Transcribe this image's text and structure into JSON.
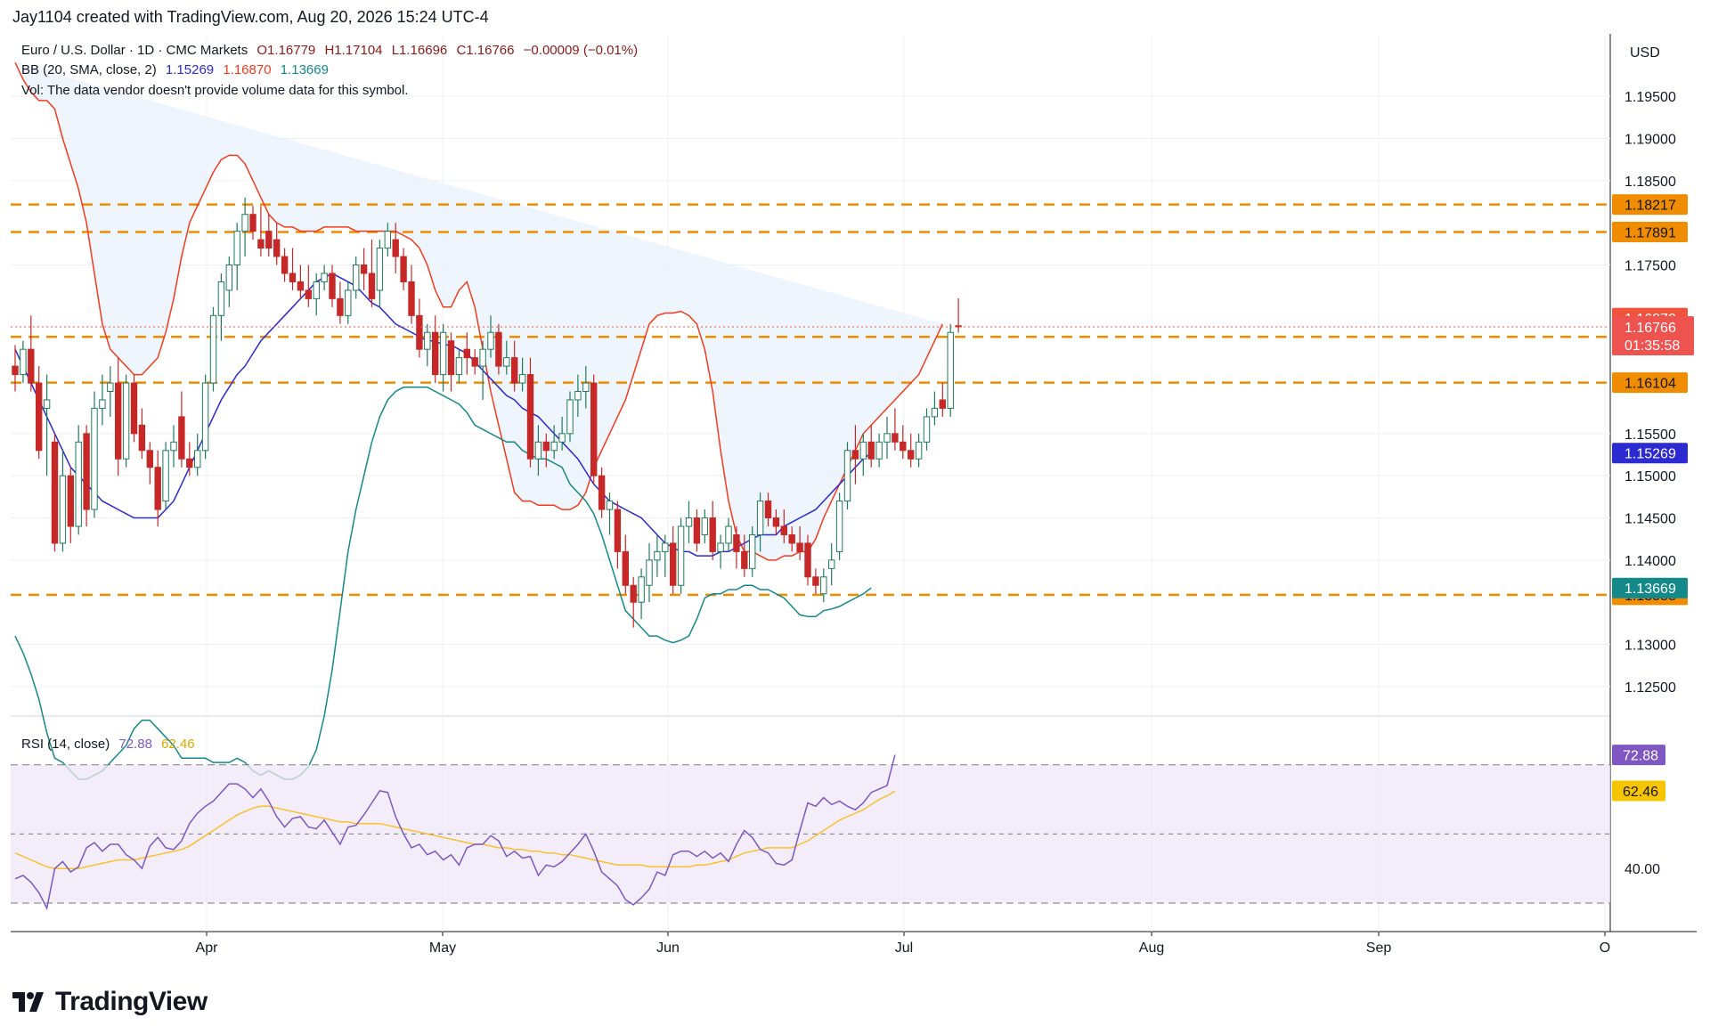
{
  "header": "Jay1104 created with TradingView.com, Aug 20, 2026 15:24 UTC-4",
  "symbol": {
    "name": "Euro / U.S. Dollar · 1D · CMC Markets",
    "open": "O1.16779",
    "high": "H1.17104",
    "low": "L1.16696",
    "close": "C1.16766",
    "change": "−0.00009 (−0.01%)"
  },
  "bb_legend": {
    "label": "BB (20, SMA, close, 2)",
    "mid": "1.15269",
    "upper": "1.16870",
    "lower": "1.13669"
  },
  "vol_note": "Vol: The data vendor doesn't provide volume data for this symbol.",
  "rsi_legend": {
    "label": "RSI (14, close)",
    "rsi": "72.88",
    "ma": "62.46"
  },
  "currency": "USD",
  "brand": "TradingView",
  "colors": {
    "up_fill": "#ffffff",
    "up_border": "#1e7b5b",
    "down": "#c62828",
    "bb_upper": "#f23b1f",
    "bb_mid": "#2c2ad1",
    "bb_lower": "#14898a",
    "level": "#f08c00",
    "rsi": "#7e57c2",
    "rsi_ma": "#fbc02d",
    "rsi_band": "#ede7f6",
    "bb_fill": "#e8f1fb"
  },
  "chart_data": {
    "type": "candlestick",
    "price_axis": {
      "ylim": [
        1.1215,
        1.2022
      ],
      "ticks": [
        "1.12500",
        "1.13000",
        "1.14000",
        "1.14500",
        "1.15000",
        "1.15500",
        "1.17500",
        "1.18500",
        "1.19000",
        "1.19500"
      ]
    },
    "x_axis": {
      "labels": [
        "Apr",
        "May",
        "Jun",
        "Jul",
        "Aug",
        "Sep",
        "O"
      ]
    },
    "levels": [
      {
        "value": 1.18217,
        "label": "1.18217"
      },
      {
        "value": 1.17891,
        "label": "1.17891"
      },
      {
        "value": 1.16647,
        "label": "1.16647"
      },
      {
        "value": 1.16104,
        "label": "1.16104"
      },
      {
        "value": 1.13588,
        "label": "1.13588"
      }
    ],
    "price_tags": {
      "upper": "1.16870",
      "last": "1.16766",
      "countdown": "01:35:58",
      "mid": "1.15269",
      "lower": "1.13669"
    },
    "candles": [
      [
        1.163,
        1.1655,
        1.16,
        1.162
      ],
      [
        1.162,
        1.166,
        1.161,
        1.165
      ],
      [
        1.165,
        1.169,
        1.16,
        1.161
      ],
      [
        1.161,
        1.163,
        1.152,
        1.153
      ],
      [
        1.158,
        1.162,
        1.15,
        1.159
      ],
      [
        1.154,
        1.155,
        1.141,
        1.142
      ],
      [
        1.142,
        1.153,
        1.141,
        1.15
      ],
      [
        1.15,
        1.151,
        1.142,
        1.144
      ],
      [
        1.144,
        1.156,
        1.143,
        1.154
      ],
      [
        1.155,
        1.156,
        1.144,
        1.146
      ],
      [
        1.146,
        1.16,
        1.145,
        1.158
      ],
      [
        1.158,
        1.162,
        1.156,
        1.159
      ],
      [
        1.16,
        1.163,
        1.157,
        1.161
      ],
      [
        1.161,
        1.164,
        1.15,
        1.152
      ],
      [
        1.152,
        1.162,
        1.151,
        1.161
      ],
      [
        1.161,
        1.162,
        1.154,
        1.155
      ],
      [
        1.156,
        1.158,
        1.152,
        1.153
      ],
      [
        1.153,
        1.154,
        1.149,
        1.151
      ],
      [
        1.151,
        1.153,
        1.144,
        1.146
      ],
      [
        1.147,
        1.154,
        1.146,
        1.153
      ],
      [
        1.153,
        1.156,
        1.151,
        1.154
      ],
      [
        1.157,
        1.16,
        1.151,
        1.152
      ],
      [
        1.152,
        1.154,
        1.15,
        1.151
      ],
      [
        1.151,
        1.155,
        1.15,
        1.153
      ],
      [
        1.153,
        1.162,
        1.152,
        1.161
      ],
      [
        1.161,
        1.17,
        1.16,
        1.169
      ],
      [
        1.169,
        1.174,
        1.166,
        1.173
      ],
      [
        1.172,
        1.176,
        1.17,
        1.175
      ],
      [
        1.175,
        1.18,
        1.172,
        1.179
      ],
      [
        1.179,
        1.183,
        1.176,
        1.181
      ],
      [
        1.181,
        1.182,
        1.178,
        1.179
      ],
      [
        1.178,
        1.182,
        1.176,
        1.177
      ],
      [
        1.179,
        1.181,
        1.176,
        1.177
      ],
      [
        1.178,
        1.18,
        1.175,
        1.176
      ],
      [
        1.176,
        1.177,
        1.173,
        1.174
      ],
      [
        1.174,
        1.177,
        1.172,
        1.173
      ],
      [
        1.173,
        1.175,
        1.171,
        1.172
      ],
      [
        1.172,
        1.175,
        1.17,
        1.171
      ],
      [
        1.171,
        1.174,
        1.169,
        1.173
      ],
      [
        1.173,
        1.175,
        1.172,
        1.174
      ],
      [
        1.174,
        1.175,
        1.17,
        1.171
      ],
      [
        1.171,
        1.173,
        1.168,
        1.169
      ],
      [
        1.169,
        1.173,
        1.168,
        1.172
      ],
      [
        1.172,
        1.176,
        1.171,
        1.175
      ],
      [
        1.175,
        1.177,
        1.172,
        1.174
      ],
      [
        1.174,
        1.178,
        1.17,
        1.171
      ],
      [
        1.172,
        1.178,
        1.17,
        1.177
      ],
      [
        1.177,
        1.18,
        1.176,
        1.179
      ],
      [
        1.178,
        1.18,
        1.174,
        1.176
      ],
      [
        1.176,
        1.177,
        1.172,
        1.173
      ],
      [
        1.173,
        1.175,
        1.168,
        1.169
      ],
      [
        1.169,
        1.171,
        1.164,
        1.165
      ],
      [
        1.165,
        1.168,
        1.163,
        1.167
      ],
      [
        1.167,
        1.169,
        1.161,
        1.162
      ],
      [
        1.162,
        1.168,
        1.16,
        1.167
      ],
      [
        1.166,
        1.167,
        1.16,
        1.162
      ],
      [
        1.162,
        1.165,
        1.161,
        1.164
      ],
      [
        1.165,
        1.167,
        1.162,
        1.164
      ],
      [
        1.164,
        1.165,
        1.162,
        1.163
      ],
      [
        1.163,
        1.166,
        1.159,
        1.165
      ],
      [
        1.165,
        1.169,
        1.164,
        1.167
      ],
      [
        1.167,
        1.168,
        1.162,
        1.163
      ],
      [
        1.163,
        1.166,
        1.162,
        1.164
      ],
      [
        1.164,
        1.166,
        1.16,
        1.161
      ],
      [
        1.161,
        1.164,
        1.16,
        1.162
      ],
      [
        1.162,
        1.164,
        1.151,
        1.152
      ],
      [
        1.152,
        1.156,
        1.15,
        1.154
      ],
      [
        1.154,
        1.155,
        1.151,
        1.153
      ],
      [
        1.153,
        1.156,
        1.152,
        1.154
      ],
      [
        1.154,
        1.157,
        1.153,
        1.155
      ],
      [
        1.155,
        1.16,
        1.154,
        1.159
      ],
      [
        1.159,
        1.162,
        1.157,
        1.16
      ],
      [
        1.16,
        1.163,
        1.158,
        1.161
      ],
      [
        1.161,
        1.162,
        1.149,
        1.15
      ],
      [
        1.15,
        1.151,
        1.145,
        1.146
      ],
      [
        1.146,
        1.148,
        1.143,
        1.147
      ],
      [
        1.146,
        1.147,
        1.139,
        1.141
      ],
      [
        1.141,
        1.143,
        1.136,
        1.137
      ],
      [
        1.137,
        1.138,
        1.132,
        1.135
      ],
      [
        1.135,
        1.139,
        1.133,
        1.138
      ],
      [
        1.137,
        1.142,
        1.135,
        1.14
      ],
      [
        1.14,
        1.143,
        1.138,
        1.141
      ],
      [
        1.141,
        1.143,
        1.138,
        1.142
      ],
      [
        1.142,
        1.144,
        1.136,
        1.137
      ],
      [
        1.137,
        1.145,
        1.136,
        1.144
      ],
      [
        1.144,
        1.147,
        1.142,
        1.145
      ],
      [
        1.145,
        1.146,
        1.141,
        1.142
      ],
      [
        1.143,
        1.146,
        1.142,
        1.145
      ],
      [
        1.145,
        1.147,
        1.14,
        1.141
      ],
      [
        1.141,
        1.143,
        1.139,
        1.142
      ],
      [
        1.142,
        1.145,
        1.141,
        1.144
      ],
      [
        1.143,
        1.144,
        1.139,
        1.141
      ],
      [
        1.141,
        1.143,
        1.138,
        1.139
      ],
      [
        1.139,
        1.144,
        1.138,
        1.143
      ],
      [
        1.143,
        1.148,
        1.141,
        1.147
      ],
      [
        1.147,
        1.148,
        1.144,
        1.145
      ],
      [
        1.145,
        1.146,
        1.143,
        1.144
      ],
      [
        1.144,
        1.146,
        1.142,
        1.143
      ],
      [
        1.143,
        1.144,
        1.141,
        1.142
      ],
      [
        1.142,
        1.144,
        1.14,
        1.141
      ],
      [
        1.142,
        1.143,
        1.137,
        1.138
      ],
      [
        1.138,
        1.139,
        1.136,
        1.137
      ],
      [
        1.136,
        1.139,
        1.135,
        1.138
      ],
      [
        1.139,
        1.142,
        1.137,
        1.14
      ],
      [
        1.141,
        1.148,
        1.14,
        1.147
      ],
      [
        1.147,
        1.154,
        1.146,
        1.153
      ],
      [
        1.153,
        1.156,
        1.149,
        1.152
      ],
      [
        1.152,
        1.155,
        1.15,
        1.154
      ],
      [
        1.154,
        1.156,
        1.151,
        1.152
      ],
      [
        1.152,
        1.155,
        1.151,
        1.154
      ],
      [
        1.154,
        1.157,
        1.152,
        1.155
      ],
      [
        1.155,
        1.158,
        1.153,
        1.154
      ],
      [
        1.154,
        1.156,
        1.152,
        1.153
      ],
      [
        1.153,
        1.155,
        1.151,
        1.152
      ],
      [
        1.152,
        1.155,
        1.151,
        1.154
      ],
      [
        1.154,
        1.158,
        1.153,
        1.157
      ],
      [
        1.157,
        1.16,
        1.156,
        1.158
      ],
      [
        1.159,
        1.161,
        1.157,
        1.158
      ],
      [
        1.158,
        1.168,
        1.157,
        1.167
      ],
      [
        1.16779,
        1.17104,
        1.16696,
        1.16766
      ]
    ],
    "bb_upper": [
      1.199,
      1.197,
      1.1955,
      1.1945,
      1.1945,
      1.1935,
      1.19,
      1.187,
      1.184,
      1.18,
      1.174,
      1.168,
      1.165,
      1.164,
      1.163,
      1.162,
      1.162,
      1.163,
      1.164,
      1.167,
      1.171,
      1.176,
      1.18,
      1.182,
      1.184,
      1.186,
      1.1875,
      1.188,
      1.188,
      1.187,
      1.185,
      1.183,
      1.181,
      1.18,
      1.1795,
      1.1795,
      1.179,
      1.179,
      1.179,
      1.1795,
      1.1795,
      1.1795,
      1.1795,
      1.179,
      1.179,
      1.179,
      1.179,
      1.179,
      1.179,
      1.1785,
      1.178,
      1.177,
      1.175,
      1.172,
      1.17,
      1.17,
      1.172,
      1.173,
      1.17,
      1.165,
      1.16,
      1.156,
      1.152,
      1.148,
      1.147,
      1.147,
      1.1465,
      1.1465,
      1.1465,
      1.146,
      1.146,
      1.1465,
      1.148,
      1.151,
      1.153,
      1.155,
      1.157,
      1.159,
      1.162,
      1.165,
      1.168,
      1.169,
      1.1693,
      1.1693,
      1.1695,
      1.169,
      1.168,
      1.165,
      1.16,
      1.153,
      1.147,
      1.143,
      1.141,
      1.141,
      1.1405,
      1.14,
      1.14,
      1.1405,
      1.1405,
      1.141,
      1.141,
      1.1425,
      1.145,
      1.147,
      1.149,
      1.151,
      1.153,
      1.155,
      1.156,
      1.157,
      1.158,
      1.159,
      1.16,
      1.161,
      1.162,
      1.164,
      1.166,
      1.168
    ],
    "bb_mid": [
      1.165,
      1.163,
      1.161,
      1.159,
      1.157,
      1.155,
      1.153,
      1.151,
      1.15,
      1.149,
      1.148,
      1.147,
      1.1465,
      1.146,
      1.1455,
      1.145,
      1.145,
      1.145,
      1.145,
      1.146,
      1.147,
      1.149,
      1.151,
      1.153,
      1.155,
      1.157,
      1.159,
      1.1605,
      1.162,
      1.163,
      1.1645,
      1.166,
      1.167,
      1.168,
      1.169,
      1.17,
      1.171,
      1.172,
      1.173,
      1.1735,
      1.174,
      1.1735,
      1.173,
      1.1725,
      1.1715,
      1.1705,
      1.17,
      1.169,
      1.168,
      1.1675,
      1.167,
      1.1665,
      1.166,
      1.166,
      1.1655,
      1.1655,
      1.165,
      1.1645,
      1.1635,
      1.1625,
      1.1615,
      1.1605,
      1.1595,
      1.159,
      1.158,
      1.1575,
      1.157,
      1.156,
      1.155,
      1.154,
      1.153,
      1.152,
      1.1505,
      1.149,
      1.148,
      1.147,
      1.1465,
      1.146,
      1.1455,
      1.145,
      1.144,
      1.143,
      1.142,
      1.1415,
      1.141,
      1.141,
      1.1405,
      1.1405,
      1.1405,
      1.141,
      1.141,
      1.1415,
      1.142,
      1.1425,
      1.143,
      1.143,
      1.143,
      1.144,
      1.1445,
      1.145,
      1.1455,
      1.146,
      1.147,
      1.148,
      1.149,
      1.15,
      1.151,
      1.152,
      1.1527
    ],
    "bb_lower": [
      1.131,
      1.129,
      1.1265,
      1.1235,
      1.1195,
      1.1165,
      1.116,
      1.115,
      1.114,
      1.114,
      1.1145,
      1.115,
      1.116,
      1.117,
      1.118,
      1.12,
      1.121,
      1.121,
      1.12,
      1.119,
      1.118,
      1.1165,
      1.1165,
      1.1165,
      1.1165,
      1.116,
      1.116,
      1.116,
      1.1165,
      1.116,
      1.115,
      1.1145,
      1.115,
      1.1145,
      1.114,
      1.114,
      1.1145,
      1.1155,
      1.1175,
      1.1215,
      1.127,
      1.134,
      1.141,
      1.146,
      1.15,
      1.154,
      1.157,
      1.159,
      1.16,
      1.1605,
      1.1605,
      1.1605,
      1.1605,
      1.16,
      1.1595,
      1.159,
      1.1585,
      1.1575,
      1.156,
      1.1555,
      1.155,
      1.1545,
      1.154,
      1.154,
      1.153,
      1.1525,
      1.152,
      1.152,
      1.1515,
      1.151,
      1.149,
      1.148,
      1.147,
      1.1455,
      1.143,
      1.14,
      1.137,
      1.134,
      1.133,
      1.132,
      1.131,
      1.131,
      1.1305,
      1.1302,
      1.1305,
      1.131,
      1.133,
      1.1355,
      1.136,
      1.136,
      1.1365,
      1.1365,
      1.137,
      1.137,
      1.1365,
      1.1365,
      1.136,
      1.1355,
      1.1345,
      1.1335,
      1.1333,
      1.1333,
      1.134,
      1.1342,
      1.1345,
      1.135,
      1.1355,
      1.136,
      1.1367
    ],
    "rsi_axis": {
      "ylim": [
        22,
        80
      ],
      "ticks": [
        "40.00"
      ],
      "levels": [
        70,
        50,
        30
      ]
    },
    "rsi": [
      37.0,
      38.0,
      36.0,
      33.0,
      28.5,
      40.0,
      42.0,
      39.0,
      40.5,
      46.0,
      47.5,
      45.0,
      47.0,
      47.0,
      44.0,
      42.5,
      40.0,
      46.5,
      49.0,
      46.0,
      45.5,
      48.0,
      53.0,
      56.0,
      58.0,
      59.5,
      62.0,
      64.5,
      64.5,
      63.0,
      60.5,
      63.0,
      59.5,
      55.0,
      52.0,
      54.5,
      55.0,
      52.0,
      51.5,
      54.0,
      50.5,
      47.0,
      52.0,
      52.5,
      55.5,
      59.0,
      62.5,
      62.0,
      55.0,
      50.0,
      46.0,
      47.0,
      44.0,
      45.0,
      42.5,
      44.0,
      41.0,
      46.0,
      47.0,
      47.0,
      49.5,
      48.0,
      43.5,
      45.0,
      43.0,
      43.5,
      38.0,
      41.0,
      40.5,
      42.0,
      44.5,
      47.0,
      50.0,
      45.0,
      39.0,
      37.0,
      35.0,
      31.0,
      29.5,
      31.5,
      34.0,
      39.0,
      38.0,
      44.0,
      45.0,
      45.0,
      43.5,
      45.0,
      43.0,
      44.5,
      42.0,
      47.0,
      51.0,
      49.0,
      45.5,
      44.5,
      41.5,
      41.0,
      42.5,
      51.0,
      59.0,
      58.0,
      60.5,
      58.5,
      59.5,
      58.0,
      57.0,
      59.0,
      62.0,
      63.0,
      64.0,
      72.88
    ],
    "rsi_ma": [
      44.5,
      43.5,
      42.5,
      41.5,
      40.5,
      40.0,
      40.0,
      40.0,
      40.0,
      40.5,
      41.0,
      41.5,
      42.0,
      42.5,
      42.5,
      42.5,
      43.0,
      43.5,
      44.0,
      44.5,
      45.0,
      45.5,
      46.5,
      48.0,
      49.5,
      51.0,
      52.5,
      54.0,
      55.5,
      56.5,
      57.5,
      58.0,
      58.0,
      57.5,
      57.0,
      56.5,
      56.0,
      55.5,
      55.0,
      54.5,
      54.0,
      53.5,
      53.5,
      53.0,
      53.0,
      53.0,
      53.0,
      52.5,
      52.0,
      51.5,
      51.0,
      50.5,
      50.0,
      49.5,
      49.0,
      48.5,
      48.0,
      47.5,
      47.0,
      47.0,
      46.5,
      46.0,
      46.0,
      45.5,
      45.5,
      45.0,
      45.0,
      44.5,
      44.5,
      44.0,
      44.0,
      43.5,
      43.0,
      42.5,
      42.0,
      41.5,
      41.0,
      41.0,
      41.0,
      41.0,
      40.5,
      40.5,
      40.5,
      40.5,
      40.5,
      40.5,
      41.0,
      41.0,
      41.5,
      42.0,
      42.5,
      43.5,
      44.5,
      45.0,
      45.5,
      46.0,
      46.0,
      46.0,
      46.0,
      47.0,
      48.0,
      49.5,
      51.0,
      52.5,
      54.0,
      55.0,
      56.0,
      57.0,
      58.5,
      60.0,
      61.0,
      62.46
    ],
    "rsi_tags": {
      "rsi": "72.88",
      "ma": "62.46"
    }
  }
}
